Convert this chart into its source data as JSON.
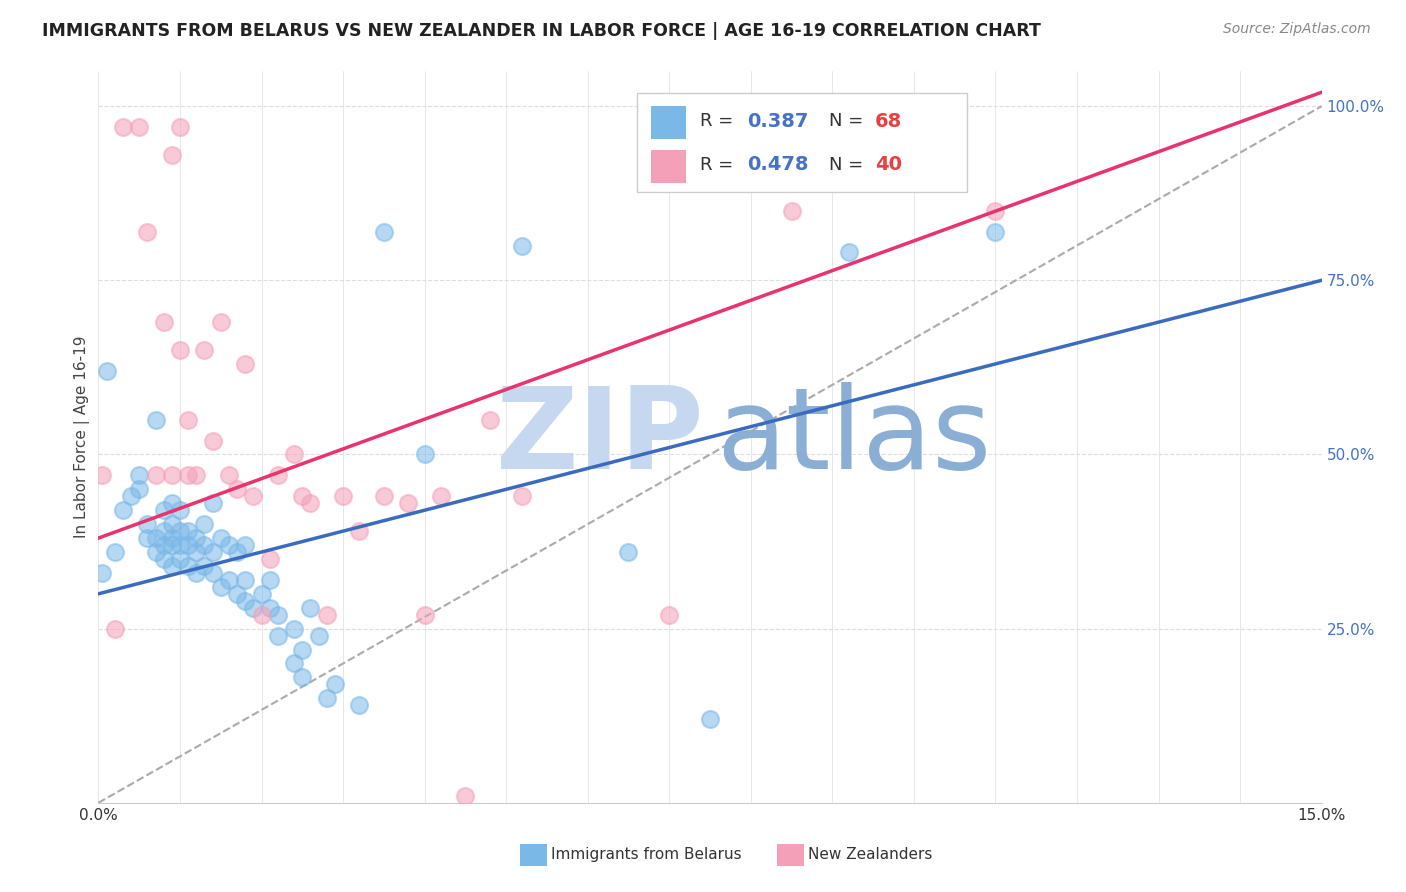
{
  "title": "IMMIGRANTS FROM BELARUS VS NEW ZEALANDER IN LABOR FORCE | AGE 16-19 CORRELATION CHART",
  "source": "Source: ZipAtlas.com",
  "ylabel": "In Labor Force | Age 16-19",
  "xlim": [
    0.0,
    0.15
  ],
  "ylim": [
    0.0,
    1.05
  ],
  "r_blue": 0.387,
  "n_blue": 68,
  "r_pink": 0.478,
  "n_pink": 40,
  "blue_color": "#7ab8e8",
  "pink_color": "#f4a0b8",
  "trend_blue_color": "#3a6bbf",
  "trend_pink_color": "#e8336e",
  "trend_dashed_color": "#aaaaaa",
  "watermark_zip_color": "#c5d8ef",
  "watermark_atlas_color": "#8aaed4",
  "blue_scatter_x": [
    0.0005,
    0.001,
    0.002,
    0.003,
    0.004,
    0.005,
    0.005,
    0.006,
    0.006,
    0.007,
    0.007,
    0.007,
    0.008,
    0.008,
    0.008,
    0.008,
    0.009,
    0.009,
    0.009,
    0.009,
    0.009,
    0.01,
    0.01,
    0.01,
    0.01,
    0.011,
    0.011,
    0.011,
    0.012,
    0.012,
    0.012,
    0.013,
    0.013,
    0.013,
    0.014,
    0.014,
    0.014,
    0.015,
    0.015,
    0.016,
    0.016,
    0.017,
    0.017,
    0.018,
    0.018,
    0.018,
    0.019,
    0.02,
    0.021,
    0.021,
    0.022,
    0.022,
    0.024,
    0.024,
    0.025,
    0.025,
    0.026,
    0.027,
    0.028,
    0.029,
    0.032,
    0.035,
    0.04,
    0.052,
    0.065,
    0.075,
    0.092,
    0.11
  ],
  "blue_scatter_y": [
    0.33,
    0.62,
    0.36,
    0.42,
    0.44,
    0.45,
    0.47,
    0.38,
    0.4,
    0.36,
    0.38,
    0.55,
    0.35,
    0.37,
    0.39,
    0.42,
    0.34,
    0.37,
    0.38,
    0.4,
    0.43,
    0.35,
    0.37,
    0.39,
    0.42,
    0.34,
    0.37,
    0.39,
    0.33,
    0.36,
    0.38,
    0.34,
    0.37,
    0.4,
    0.33,
    0.36,
    0.43,
    0.31,
    0.38,
    0.32,
    0.37,
    0.3,
    0.36,
    0.29,
    0.32,
    0.37,
    0.28,
    0.3,
    0.28,
    0.32,
    0.24,
    0.27,
    0.2,
    0.25,
    0.18,
    0.22,
    0.28,
    0.24,
    0.15,
    0.17,
    0.14,
    0.82,
    0.5,
    0.8,
    0.36,
    0.12,
    0.79,
    0.82
  ],
  "pink_scatter_x": [
    0.0005,
    0.002,
    0.003,
    0.005,
    0.006,
    0.007,
    0.008,
    0.009,
    0.009,
    0.01,
    0.01,
    0.011,
    0.011,
    0.012,
    0.013,
    0.014,
    0.015,
    0.016,
    0.017,
    0.018,
    0.019,
    0.02,
    0.021,
    0.022,
    0.024,
    0.025,
    0.026,
    0.028,
    0.03,
    0.032,
    0.035,
    0.038,
    0.04,
    0.042,
    0.045,
    0.048,
    0.052,
    0.07,
    0.085,
    0.11
  ],
  "pink_scatter_y": [
    0.47,
    0.25,
    0.97,
    0.97,
    0.82,
    0.47,
    0.69,
    0.93,
    0.47,
    0.65,
    0.97,
    0.55,
    0.47,
    0.47,
    0.65,
    0.52,
    0.69,
    0.47,
    0.45,
    0.63,
    0.44,
    0.27,
    0.35,
    0.47,
    0.5,
    0.44,
    0.43,
    0.27,
    0.44,
    0.39,
    0.44,
    0.43,
    0.27,
    0.44,
    0.01,
    0.55,
    0.44,
    0.27,
    0.85,
    0.85
  ],
  "trend_blue_x0": 0.0,
  "trend_blue_y0": 0.3,
  "trend_blue_x1": 0.15,
  "trend_blue_y1": 0.75,
  "trend_pink_x0": 0.0,
  "trend_pink_y0": 0.38,
  "trend_pink_x1": 0.15,
  "trend_pink_y1": 1.02
}
